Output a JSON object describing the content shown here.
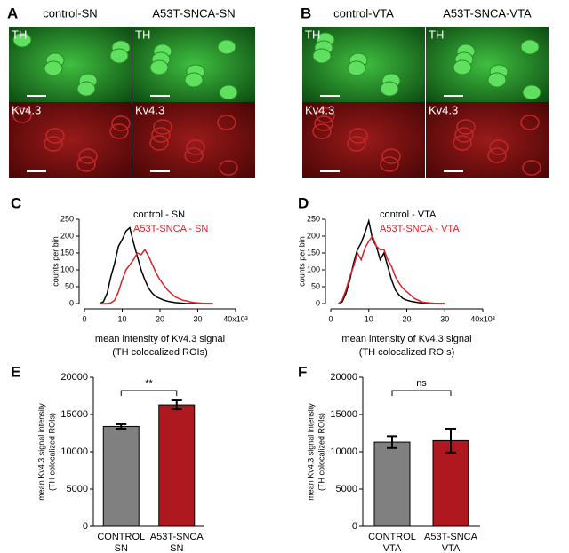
{
  "images": [
    {
      "letter": "A",
      "columns": [
        "control-SN",
        "A53T-SNCA-SN"
      ],
      "top": "TH",
      "bottom": "Kv4.3"
    },
    {
      "letter": "B",
      "columns": [
        "control-VTA",
        "A53T-SNCA-VTA"
      ],
      "top": "TH",
      "bottom": "Kv4.3"
    }
  ],
  "chart_data": [
    {
      "type": "line",
      "letter": "C",
      "ylabel": "counts per bin",
      "xlabel": [
        "mean intensity of Kv4.3 signal",
        "(TH colocalized ROIs)"
      ],
      "x": [
        4,
        5,
        6,
        7,
        8,
        9,
        10,
        11,
        12,
        13,
        14,
        15,
        16,
        17,
        18,
        19,
        20,
        21,
        22,
        23,
        24,
        25,
        26,
        27,
        28,
        29,
        30,
        31,
        32,
        33,
        34
      ],
      "series": [
        {
          "name": "control - SN",
          "color": "#000000",
          "values": [
            0,
            5,
            30,
            80,
            120,
            170,
            190,
            215,
            225,
            180,
            140,
            100,
            70,
            45,
            30,
            20,
            15,
            10,
            7,
            5,
            3,
            2,
            1,
            0,
            0,
            0,
            0,
            0,
            0,
            0,
            0
          ]
        },
        {
          "name": "A53T-SNCA - SN",
          "color": "#e0202a",
          "values": [
            0,
            0,
            0,
            2,
            10,
            35,
            70,
            100,
            115,
            130,
            150,
            145,
            160,
            140,
            115,
            90,
            70,
            55,
            40,
            30,
            20,
            15,
            10,
            8,
            5,
            3,
            2,
            1,
            0,
            0,
            0
          ]
        }
      ],
      "xlim": [
        0,
        40
      ],
      "xticks": [
        0,
        10,
        20,
        30,
        {
          "value": 40,
          "label": "40x10³"
        }
      ],
      "ylim": [
        0,
        250
      ],
      "yticks": [
        0,
        50,
        100,
        150,
        200,
        250
      ]
    },
    {
      "type": "line",
      "letter": "D",
      "ylabel": "counts per bin",
      "xlabel": [
        "mean intensity of Kv4.3 signal",
        "(TH colocalized ROIs)"
      ],
      "x": [
        2,
        3,
        4,
        5,
        6,
        7,
        8,
        9,
        10,
        11,
        12,
        13,
        14,
        15,
        16,
        17,
        18,
        19,
        20,
        21,
        22,
        23,
        24,
        25,
        26,
        27,
        28,
        29,
        30
      ],
      "series": [
        {
          "name": "control - VTA",
          "color": "#000000",
          "values": [
            0,
            5,
            30,
            70,
            120,
            160,
            180,
            210,
            245,
            190,
            170,
            130,
            150,
            110,
            70,
            40,
            25,
            15,
            10,
            7,
            5,
            3,
            2,
            1,
            0,
            0,
            0,
            0,
            0
          ]
        },
        {
          "name": "A53T-SNCA - VTA",
          "color": "#e0202a",
          "values": [
            0,
            10,
            40,
            80,
            110,
            150,
            130,
            165,
            185,
            200,
            170,
            160,
            160,
            130,
            110,
            80,
            60,
            45,
            35,
            25,
            15,
            10,
            5,
            3,
            2,
            1,
            0,
            0,
            0
          ]
        }
      ],
      "xlim": [
        0,
        40
      ],
      "xticks": [
        0,
        10,
        20,
        30,
        {
          "value": 40,
          "label": "40x10³"
        }
      ],
      "ylim": [
        0,
        250
      ],
      "yticks": [
        0,
        50,
        100,
        150,
        200,
        250
      ]
    },
    {
      "type": "bar",
      "letter": "E",
      "ylabel": [
        "mean Kv4.3 signal intensity",
        "(TH colocalized ROIs)"
      ],
      "categories": [
        [
          "CONTROL",
          "SN"
        ],
        [
          "A53T-SNCA",
          "SN"
        ]
      ],
      "values": [
        13400,
        16300
      ],
      "errors": [
        300,
        600
      ],
      "colors": [
        "#808080",
        "#b01820"
      ],
      "annotation": "**",
      "ylim": [
        0,
        20000
      ],
      "yticks": [
        0,
        5000,
        10000,
        15000,
        20000
      ]
    },
    {
      "type": "bar",
      "letter": "F",
      "ylabel": [
        "mean Kv4.3 signal intensity",
        "(TH colocalized ROIs)"
      ],
      "categories": [
        [
          "CONTROL",
          "VTA"
        ],
        [
          "A53T-SNCA",
          "VTA"
        ]
      ],
      "values": [
        11300,
        11500
      ],
      "errors": [
        800,
        1600
      ],
      "colors": [
        "#808080",
        "#b01820"
      ],
      "annotation": "ns",
      "ylim": [
        0,
        20000
      ],
      "yticks": [
        0,
        5000,
        10000,
        15000,
        20000
      ]
    }
  ]
}
